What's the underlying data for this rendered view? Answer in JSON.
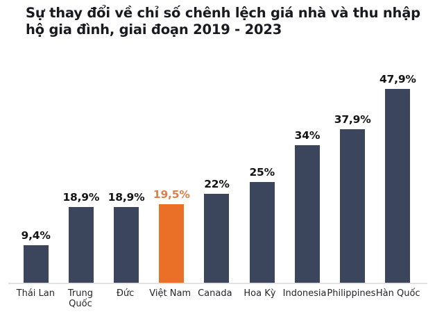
{
  "title": {
    "full": "Sự thay đổi về chỉ số chênh lệch giá nhà và thu nhập hộ gia đình, giai đoạn 2019 - 2023",
    "line1": "Sự thay đổi về chỉ số chênh lệch giá nhà và thu nhập",
    "line2": "hộ gia đình, giai đoạn 2019 - 2023"
  },
  "chart_data": {
    "type": "bar",
    "title": "Sự thay đổi về chỉ số chênh lệch giá nhà và thu nhập hộ gia đình, giai đoạn 2019 - 2023",
    "categories": [
      "Thái Lan",
      "Trung Quốc",
      "Đức",
      "Việt Nam",
      "Canada",
      "Hoa Kỳ",
      "Indonesia",
      "Philippines",
      "Hàn Quốc"
    ],
    "values": [
      9.4,
      18.9,
      18.9,
      19.5,
      22,
      25,
      34,
      37.9,
      47.9
    ],
    "value_labels": [
      "9,4%",
      "18,9%",
      "18,9%",
      "19,5%",
      "22%",
      "25%",
      "34%",
      "37,9%",
      "47,9%"
    ],
    "highlight": {
      "index": 3,
      "category": "Việt Nam"
    },
    "xlabel": "",
    "ylabel": "",
    "ylim": [
      0,
      50
    ],
    "grid": false,
    "legend": false,
    "colors": {
      "bar": "#3b455c",
      "highlight_bar": "#ea7028",
      "value_label": "#141414",
      "highlight_value_label": "#dd7f4a",
      "title": "#191920",
      "axis_line": "#e2e2e2",
      "x_label": "#25252b",
      "background": "#ffffff"
    }
  }
}
